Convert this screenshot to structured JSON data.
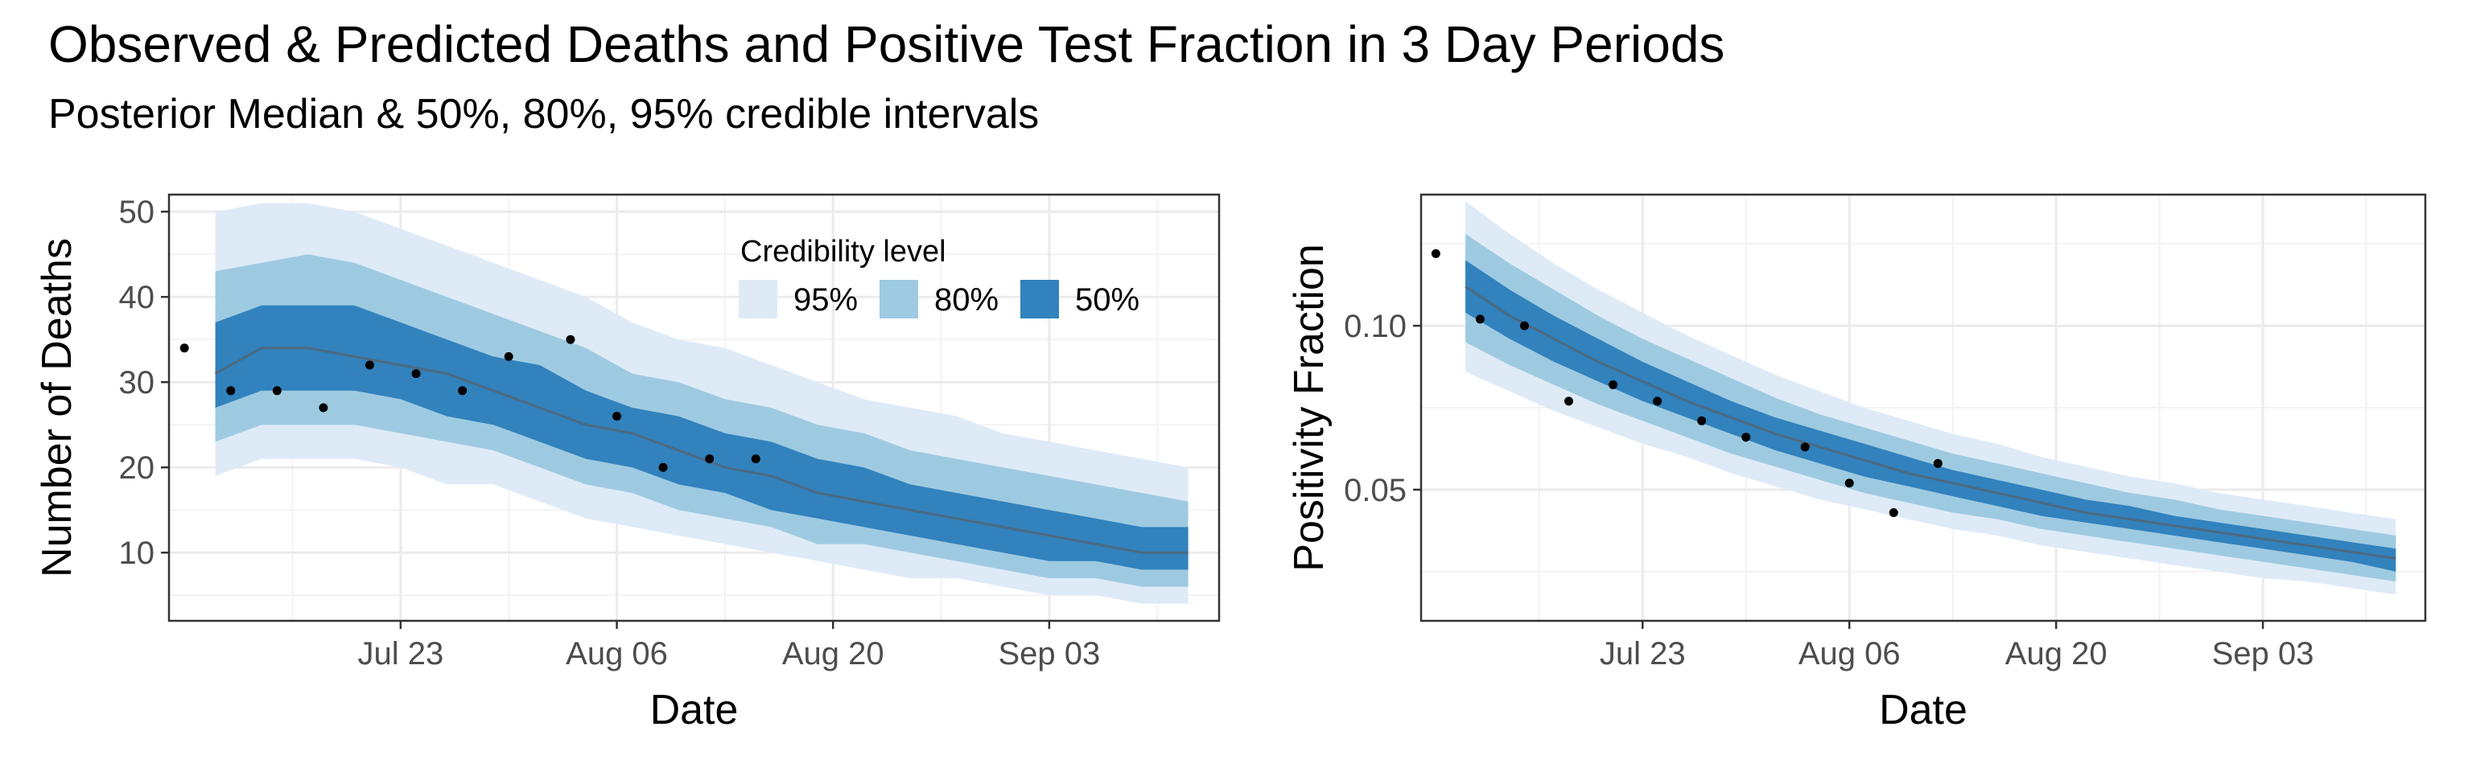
{
  "title": "Observed & Predicted Deaths and Positive Test Fraction in 3 Day Periods",
  "subtitle": "Posterior Median & 50%, 80%, 95% credible intervals",
  "legend": {
    "title": "Credibility level",
    "items": [
      {
        "label": "95%",
        "color": "#deebf7"
      },
      {
        "label": "80%",
        "color": "#9ecae1"
      },
      {
        "label": "50%",
        "color": "#3182bd"
      }
    ]
  },
  "colors": {
    "median": "#4d6a80",
    "points": "#000000",
    "grid": "#ebebeb",
    "panel_border": "#333333"
  },
  "chart_data": [
    {
      "type": "area",
      "xlabel": "Date",
      "ylabel": "Number of Deaths",
      "ylim": [
        2,
        52
      ],
      "yticks": [
        10,
        20,
        30,
        40,
        50
      ],
      "xlim": [
        "2020-07-08",
        "2020-09-14"
      ],
      "xticks": [
        {
          "date": "2020-07-23",
          "label": "Jul 23"
        },
        {
          "date": "2020-08-06",
          "label": "Aug 06"
        },
        {
          "date": "2020-08-20",
          "label": "Aug 20"
        },
        {
          "date": "2020-09-03",
          "label": "Sep 03"
        }
      ],
      "x": [
        "2020-07-11",
        "2020-07-14",
        "2020-07-17",
        "2020-07-20",
        "2020-07-23",
        "2020-07-26",
        "2020-07-29",
        "2020-08-01",
        "2020-08-04",
        "2020-08-07",
        "2020-08-10",
        "2020-08-13",
        "2020-08-16",
        "2020-08-19",
        "2020-08-22",
        "2020-08-25",
        "2020-08-28",
        "2020-08-31",
        "2020-09-03",
        "2020-09-06",
        "2020-09-09",
        "2020-09-12"
      ],
      "median": [
        31,
        34,
        34,
        33,
        32,
        31,
        29,
        27,
        25,
        24,
        22,
        20,
        19,
        17,
        16,
        15,
        14,
        13,
        12,
        11,
        10,
        10
      ],
      "lo50": [
        27,
        29,
        29,
        29,
        28,
        26,
        25,
        23,
        21,
        20,
        18,
        17,
        15,
        14,
        13,
        12,
        11,
        10,
        9,
        9,
        8,
        8
      ],
      "hi50": [
        37,
        39,
        39,
        39,
        37,
        35,
        33,
        32,
        29,
        27,
        26,
        24,
        23,
        21,
        20,
        18,
        17,
        16,
        15,
        14,
        13,
        13
      ],
      "lo80": [
        23,
        25,
        25,
        25,
        24,
        23,
        22,
        20,
        18,
        17,
        15,
        14,
        13,
        11,
        11,
        10,
        9,
        8,
        7,
        7,
        6,
        6
      ],
      "hi80": [
        43,
        44,
        45,
        44,
        42,
        40,
        38,
        36,
        34,
        31,
        30,
        28,
        27,
        25,
        24,
        22,
        21,
        20,
        19,
        18,
        17,
        16
      ],
      "lo95": [
        19,
        21,
        21,
        21,
        20,
        18,
        18,
        16,
        14,
        13,
        12,
        11,
        10,
        9,
        8,
        7,
        7,
        6,
        5,
        5,
        4,
        4
      ],
      "hi95": [
        50,
        51,
        51,
        50,
        48,
        46,
        44,
        42,
        40,
        37,
        35,
        34,
        32,
        30,
        28,
        27,
        26,
        24,
        23,
        22,
        21,
        20
      ],
      "observed": {
        "x": [
          "2020-07-09",
          "2020-07-12",
          "2020-07-15",
          "2020-07-18",
          "2020-07-21",
          "2020-07-24",
          "2020-07-27",
          "2020-07-30",
          "2020-08-03",
          "2020-08-06",
          "2020-08-09",
          "2020-08-12",
          "2020-08-15"
        ],
        "y": [
          34,
          29,
          29,
          27,
          32,
          31,
          29,
          33,
          35,
          26,
          20,
          21,
          21
        ]
      }
    },
    {
      "type": "area",
      "xlabel": "Date",
      "ylabel": "Positivity Fraction",
      "ylim": [
        0.01,
        0.14
      ],
      "yticks": [
        0.05,
        0.1
      ],
      "ytick_labels": [
        "0.05",
        "0.10"
      ],
      "xlim": [
        "2020-07-08",
        "2020-09-14"
      ],
      "xticks": [
        {
          "date": "2020-07-23",
          "label": "Jul 23"
        },
        {
          "date": "2020-08-06",
          "label": "Aug 06"
        },
        {
          "date": "2020-08-20",
          "label": "Aug 20"
        },
        {
          "date": "2020-09-03",
          "label": "Sep 03"
        }
      ],
      "x": [
        "2020-07-11",
        "2020-07-14",
        "2020-07-17",
        "2020-07-20",
        "2020-07-23",
        "2020-07-26",
        "2020-07-29",
        "2020-08-01",
        "2020-08-04",
        "2020-08-07",
        "2020-08-10",
        "2020-08-13",
        "2020-08-16",
        "2020-08-19",
        "2020-08-22",
        "2020-08-25",
        "2020-08-28",
        "2020-08-31",
        "2020-09-03",
        "2020-09-06",
        "2020-09-09",
        "2020-09-12"
      ],
      "median": [
        0.112,
        0.103,
        0.096,
        0.089,
        0.083,
        0.077,
        0.072,
        0.067,
        0.063,
        0.059,
        0.055,
        0.052,
        0.049,
        0.046,
        0.043,
        0.041,
        0.039,
        0.037,
        0.035,
        0.033,
        0.031,
        0.029
      ],
      "lo50": [
        0.104,
        0.096,
        0.089,
        0.083,
        0.077,
        0.072,
        0.067,
        0.062,
        0.058,
        0.054,
        0.051,
        0.048,
        0.045,
        0.042,
        0.04,
        0.038,
        0.036,
        0.034,
        0.032,
        0.03,
        0.028,
        0.025
      ],
      "hi50": [
        0.12,
        0.111,
        0.103,
        0.096,
        0.089,
        0.083,
        0.077,
        0.072,
        0.068,
        0.064,
        0.06,
        0.056,
        0.053,
        0.05,
        0.047,
        0.045,
        0.042,
        0.04,
        0.038,
        0.036,
        0.034,
        0.032
      ],
      "lo80": [
        0.095,
        0.088,
        0.082,
        0.076,
        0.071,
        0.066,
        0.061,
        0.057,
        0.053,
        0.049,
        0.046,
        0.043,
        0.041,
        0.038,
        0.036,
        0.034,
        0.032,
        0.03,
        0.028,
        0.026,
        0.024,
        0.022
      ],
      "hi80": [
        0.128,
        0.119,
        0.111,
        0.103,
        0.096,
        0.09,
        0.084,
        0.078,
        0.073,
        0.069,
        0.065,
        0.061,
        0.058,
        0.055,
        0.052,
        0.049,
        0.047,
        0.044,
        0.042,
        0.04,
        0.038,
        0.036
      ],
      "lo95": [
        0.086,
        0.08,
        0.074,
        0.069,
        0.064,
        0.06,
        0.055,
        0.051,
        0.047,
        0.044,
        0.041,
        0.038,
        0.036,
        0.033,
        0.031,
        0.029,
        0.027,
        0.025,
        0.023,
        0.022,
        0.02,
        0.018
      ],
      "hi95": [
        0.138,
        0.128,
        0.119,
        0.111,
        0.104,
        0.097,
        0.091,
        0.085,
        0.08,
        0.075,
        0.071,
        0.067,
        0.064,
        0.06,
        0.057,
        0.054,
        0.052,
        0.049,
        0.047,
        0.045,
        0.043,
        0.041
      ],
      "observed": {
        "x": [
          "2020-07-09",
          "2020-07-12",
          "2020-07-15",
          "2020-07-18",
          "2020-07-21",
          "2020-07-24",
          "2020-07-27",
          "2020-07-30",
          "2020-08-03",
          "2020-08-06",
          "2020-08-09",
          "2020-08-12"
        ],
        "y": [
          0.122,
          0.102,
          0.1,
          0.077,
          0.082,
          0.077,
          0.071,
          0.066,
          0.063,
          0.052,
          0.043,
          0.058
        ]
      }
    }
  ]
}
